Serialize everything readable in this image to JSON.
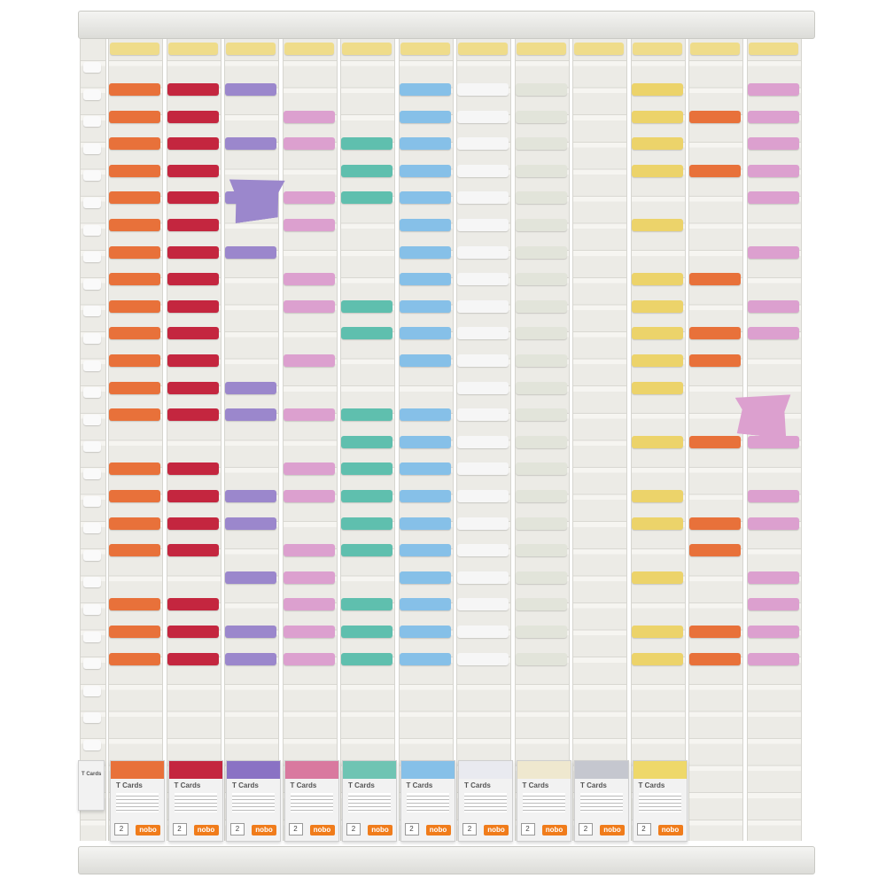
{
  "holder": {
    "title": "T Cards"
  },
  "boxes": [
    {
      "title": "T Cards",
      "number": "2",
      "brand": "nobo"
    },
    {
      "title": "T Cards",
      "number": "2",
      "brand": "nobo"
    },
    {
      "title": "T Cards",
      "number": "2",
      "brand": "nobo"
    },
    {
      "title": "T Cards",
      "number": "2",
      "brand": "nobo"
    },
    {
      "title": "T Cards",
      "number": "2",
      "brand": "nobo"
    },
    {
      "title": "T Cards",
      "number": "2",
      "brand": "nobo"
    },
    {
      "title": "T Cards",
      "number": "2",
      "brand": "nobo"
    },
    {
      "title": "T Cards",
      "number": "2",
      "brand": "nobo"
    },
    {
      "title": "T Cards",
      "number": "2",
      "brand": "nobo"
    },
    {
      "title": "T Cards",
      "number": "2",
      "brand": "nobo"
    }
  ]
}
